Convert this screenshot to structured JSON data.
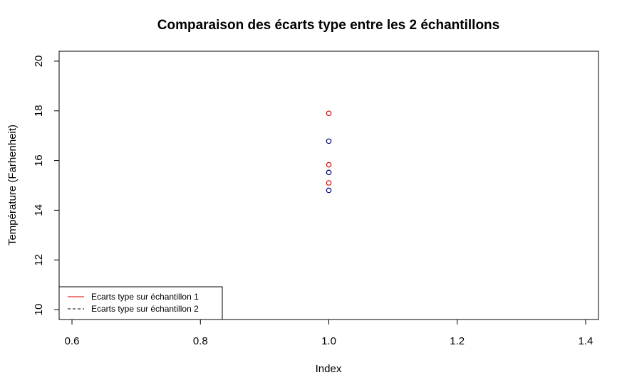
{
  "chart_data": {
    "type": "scatter",
    "title": "Comparaison des écarts type entre les 2 échantillons",
    "xlabel": "Index",
    "ylabel": "Température (Farhenheit)",
    "xlim": [
      0.58,
      1.42
    ],
    "ylim": [
      9.6,
      20.4
    ],
    "x_ticks": [
      0.6,
      0.8,
      1.0,
      1.2,
      1.4
    ],
    "x_tick_labels": [
      "0.6",
      "0.8",
      "1.0",
      "1.2",
      "1.4"
    ],
    "y_ticks": [
      10,
      12,
      14,
      16,
      18,
      20
    ],
    "y_tick_labels": [
      "10",
      "12",
      "14",
      "16",
      "18",
      "20"
    ],
    "grid": false,
    "legend_position": "bottom-left",
    "series": [
      {
        "name": "Ecarts type sur échantillon 1",
        "color": "#df0000",
        "line_style": "solid",
        "marker": "open-circle",
        "x": [
          1.0,
          1.0,
          1.0
        ],
        "y": [
          17.9,
          15.83,
          15.1
        ]
      },
      {
        "name": "Ecarts type sur échantillon 2",
        "color": "#000080",
        "line_style": "dashed",
        "marker": "open-circle",
        "x": [
          1.0,
          1.0,
          1.0
        ],
        "y": [
          16.78,
          15.52,
          14.8
        ]
      }
    ]
  }
}
